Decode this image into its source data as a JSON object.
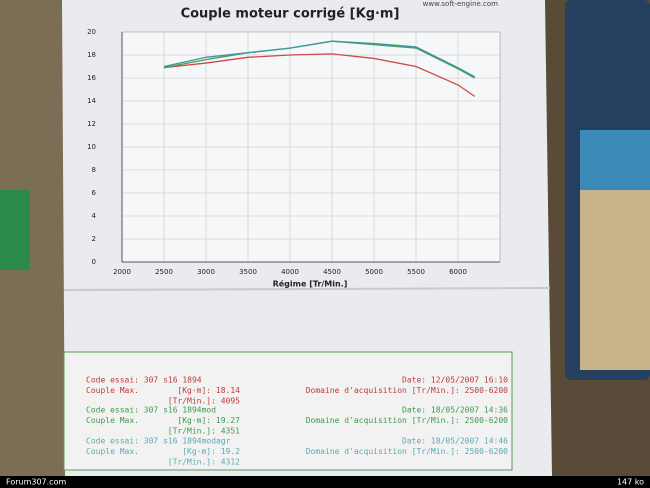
{
  "chart_data": {
    "type": "line",
    "title": "Couple moteur corrigé [Kg·m]",
    "source": "www.soft-engine.com",
    "x_label": "Régime [Tr/Min.]",
    "x": [
      2500,
      3000,
      3500,
      4000,
      4500,
      5000,
      5500,
      6000,
      6200
    ],
    "series": [
      {
        "name": "307 s16 1894",
        "color": "#d04848",
        "values": [
          16.9,
          17.3,
          17.8,
          18.0,
          18.1,
          17.7,
          17.0,
          15.4,
          14.4
        ]
      },
      {
        "name": "307 s16 1894mod",
        "color": "#4a9a5a",
        "values": [
          16.9,
          17.6,
          18.2,
          18.6,
          19.2,
          18.9,
          18.6,
          16.8,
          16.0
        ]
      },
      {
        "name": "307 s16 1894modagr",
        "color": "#3a9aa0",
        "values": [
          17.0,
          17.8,
          18.2,
          18.6,
          19.2,
          19.0,
          18.7,
          16.9,
          16.1
        ]
      }
    ],
    "xlim": [
      2000,
      6500
    ],
    "xticks": [
      2000,
      2500,
      3000,
      3500,
      4000,
      4500,
      5000,
      5500,
      6000
    ],
    "ylim": [
      0,
      20
    ],
    "yticks": [
      0,
      2,
      4,
      6,
      8,
      10,
      12,
      14,
      16,
      18,
      20
    ],
    "grid": true
  },
  "results": [
    {
      "color": "#c03a3a",
      "code": "Code essai: 307 s16 1894",
      "date": "Date: 12/05/2007 16:10",
      "couple": "Couple Max.",
      "kgm": "[Kg·m]: 18.14",
      "domaine": "Domaine d'acquisition [Tr/Min.]: 2500-6200",
      "rpm": "[Tr/Min.]: 4095"
    },
    {
      "color": "#3f9a4a",
      "code": "Code essai: 307 s16 1894mod",
      "date": "Date: 18/05/2007 14:36",
      "couple": "Couple Max.",
      "kgm": "[Kg·m]: 19.27",
      "domaine": "Domaine d'acquisition [Tr/Min.]: 2500-6200",
      "rpm": "[Tr/Min.]: 4351"
    },
    {
      "color": "#5aaab0",
      "code": "Code essai: 307 s16 1894modagr",
      "date": "Date: 18/05/2007 14:46",
      "couple": "Couple Max.",
      "kgm": "[Kg·m]: 19.2",
      "domaine": "Domaine d'acquisition [Tr/Min.]: 2500-6200",
      "rpm": "[Tr/Min.]: 4312"
    }
  ],
  "footer": {
    "site": "Forum307.com",
    "size": "147 ko"
  }
}
